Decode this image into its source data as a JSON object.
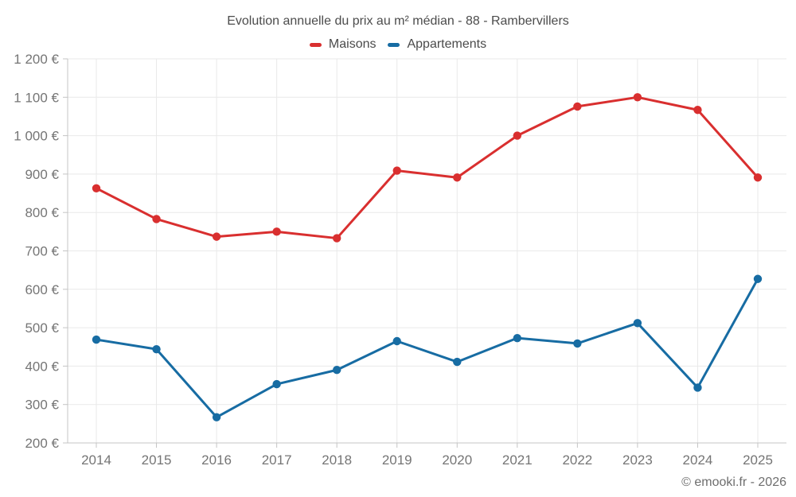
{
  "chart_data": {
    "type": "line",
    "title": "Evolution annuelle du prix au m² médian - 88 - Rambervillers",
    "categories": [
      "2014",
      "2015",
      "2016",
      "2017",
      "2018",
      "2019",
      "2020",
      "2021",
      "2022",
      "2023",
      "2024",
      "2025"
    ],
    "series": [
      {
        "name": "Maisons",
        "color": "#d92f2f",
        "values": [
          863,
          783,
          737,
          750,
          733,
          909,
          891,
          1000,
          1076,
          1100,
          1067,
          891
        ]
      },
      {
        "name": "Appartements",
        "color": "#176ca3",
        "values": [
          469,
          444,
          267,
          353,
          390,
          465,
          411,
          473,
          459,
          512,
          344,
          627
        ]
      }
    ],
    "xlabel": "",
    "ylabel": "",
    "ylim": [
      200,
      1200
    ],
    "y_step": 100,
    "y_unit": "€",
    "grid": true,
    "legend_position": "top"
  },
  "footer": {
    "credit": "© emooki.fr - 2026"
  },
  "colors": {
    "grid": "#e9e9e9",
    "axis": "#c4c4c4",
    "tick_label": "#757575",
    "title": "#4c4c4c",
    "legend_text": "#4a4a4a",
    "footer": "#6e6e6e",
    "background": "#ffffff"
  }
}
